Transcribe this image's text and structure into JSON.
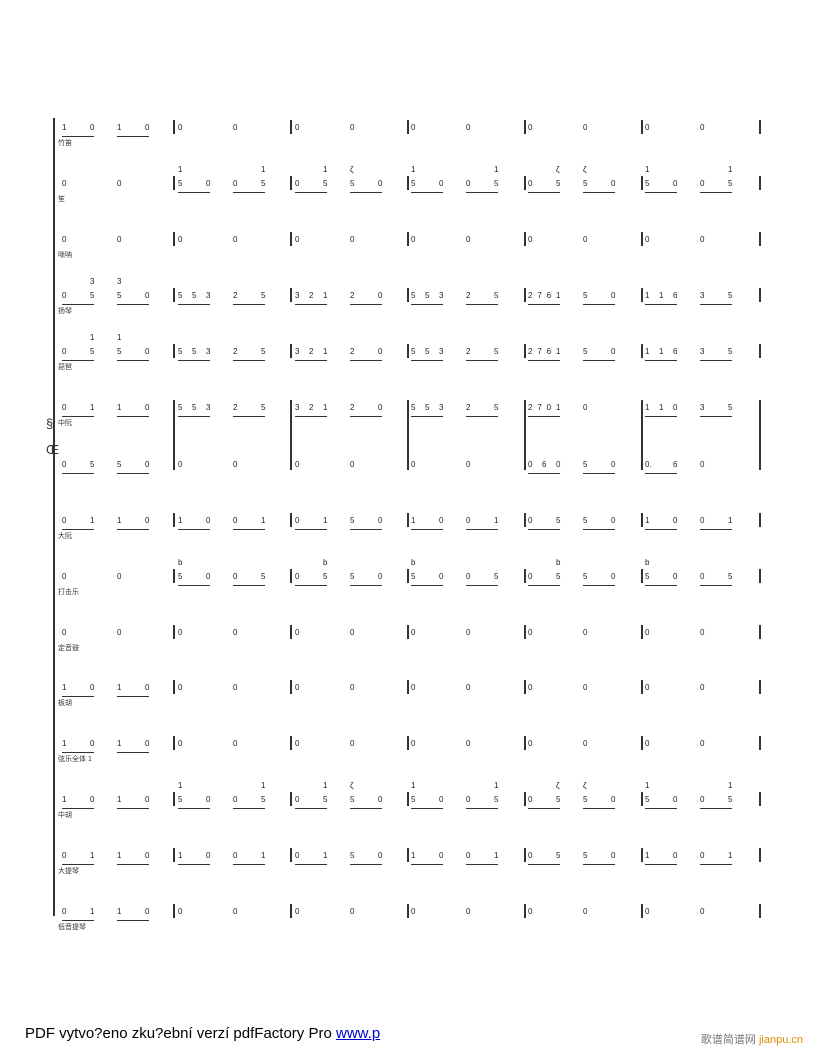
{
  "symbols": {
    "segno": "§",
    "coda": "Œ"
  },
  "rows": [
    {
      "label": "竹笛",
      "m": [
        [
          "_1 0",
          "_1 0"
        ],
        [
          "0",
          "0"
        ],
        [
          "0",
          "0"
        ],
        [
          "0",
          "0"
        ],
        [
          "0",
          "0"
        ],
        [
          "0",
          "0"
        ]
      ]
    },
    {
      "label": "笙",
      "m": [
        [
          "0",
          "0"
        ],
        [
          "_5^1 0",
          "_0 5^1"
        ],
        [
          "_0 5^1",
          "_5^ζ 0"
        ],
        [
          "_5^1 0",
          "_0 5^1"
        ],
        [
          "_0 5^ζ",
          "_5^ζ 0"
        ],
        [
          "_5^1 0",
          "_0 5^1"
        ]
      ]
    },
    {
      "label": "唢呐",
      "m": [
        [
          "0",
          "0"
        ],
        [
          "0",
          "0"
        ],
        [
          "0",
          "0"
        ],
        [
          "0",
          "0"
        ],
        [
          "0",
          "0"
        ],
        [
          "0",
          "0"
        ]
      ]
    },
    {
      "label": "扬琴",
      "m": [
        [
          "_0 5^3",
          "_5^3 0"
        ],
        [
          "_5 5 3",
          "_2 5"
        ],
        [
          "_3 2 1",
          "_2 0"
        ],
        [
          "_5 5 3",
          "_2 5"
        ],
        [
          "_2 7 6 1",
          "_5 0"
        ],
        [
          "_1 1 6",
          "_3 5"
        ]
      ]
    },
    {
      "label": "琵琶",
      "m": [
        [
          "_0 5^1",
          "_5^1 0"
        ],
        [
          "_5 5 3",
          "_2 5"
        ],
        [
          "_3 2 1",
          "_2 0"
        ],
        [
          "_5 5 3",
          "_2 5"
        ],
        [
          "_2 7 6 1",
          "_5 0"
        ],
        [
          "_1 1 6",
          "_3 5"
        ]
      ]
    },
    {
      "label": "中阮",
      "m": [
        [
          "_0 1",
          "_1 0"
        ],
        [
          "_5 5 3",
          "_2 5"
        ],
        [
          "_3 2 1",
          "_2 0"
        ],
        [
          "_5 5 3",
          "_2 5"
        ],
        [
          "_2 7 0 1",
          "0"
        ],
        [
          "_1 1 0",
          "_3 5"
        ]
      ]
    },
    {
      "label": "",
      "m": [
        [
          "_0 5",
          "_5 0"
        ],
        [
          "0",
          "0"
        ],
        [
          "0",
          "0"
        ],
        [
          "0",
          "0"
        ],
        [
          "_0 6 0",
          "_5 0"
        ],
        [
          "_0. 6",
          "0"
        ]
      ]
    },
    {
      "label": "大阮",
      "m": [
        [
          "_0 1",
          "_1 0"
        ],
        [
          "_1 0",
          "_0 1"
        ],
        [
          "_0 1",
          "_5 0"
        ],
        [
          "_1 0",
          "_0 1"
        ],
        [
          "_0 5",
          "_5 0"
        ],
        [
          "_1 0",
          "_0 1"
        ]
      ]
    },
    {
      "label": "打击乐",
      "m": [
        [
          "0",
          "0"
        ],
        [
          "_5^b 0",
          "_0 5"
        ],
        [
          "_0 5^b",
          "_5 0"
        ],
        [
          "_5^b 0",
          "_0 5"
        ],
        [
          "_0 5^b",
          "_5 0"
        ],
        [
          "_5^b 0",
          "_0 5"
        ]
      ]
    },
    {
      "label": "定音鼓",
      "m": [
        [
          "0",
          "0"
        ],
        [
          "0",
          "0"
        ],
        [
          "0",
          "0"
        ],
        [
          "0",
          "0"
        ],
        [
          "0",
          "0"
        ],
        [
          "0",
          "0"
        ]
      ]
    },
    {
      "label": "板胡",
      "m": [
        [
          "_1 0",
          "_1 0"
        ],
        [
          "0",
          "0"
        ],
        [
          "0",
          "0"
        ],
        [
          "0",
          "0"
        ],
        [
          "0",
          "0"
        ],
        [
          "0",
          "0"
        ]
      ]
    },
    {
      "label": "弦乐全体 1",
      "m": [
        [
          "_1 0",
          "_1 0"
        ],
        [
          "0",
          "0"
        ],
        [
          "0",
          "0"
        ],
        [
          "0",
          "0"
        ],
        [
          "0",
          "0"
        ],
        [
          "0",
          "0"
        ]
      ]
    },
    {
      "label": "中胡",
      "m": [
        [
          "_1 0",
          "_1 0"
        ],
        [
          "_5^1 0",
          "_0 5^1"
        ],
        [
          "_0 5^1",
          "_5^ζ 0"
        ],
        [
          "_5^1 0",
          "_0 5^1"
        ],
        [
          "_0 5^ζ",
          "_5^ζ 0"
        ],
        [
          "_5^1 0",
          "_0 5^1"
        ]
      ]
    },
    {
      "label": "大提琴",
      "m": [
        [
          "_0 1",
          "_1 0"
        ],
        [
          "_1 0",
          "_0 1"
        ],
        [
          "_0 1",
          "_5 0"
        ],
        [
          "_1 0",
          "_0 1"
        ],
        [
          "_0 5",
          "_5 0"
        ],
        [
          "_1 0",
          "_0 1"
        ]
      ]
    },
    {
      "label": "低音提琴",
      "m": [
        [
          "_0 1",
          "_1 0"
        ],
        [
          "0",
          "0"
        ],
        [
          "0",
          "0"
        ],
        [
          "0",
          "0"
        ],
        [
          "0",
          "0"
        ],
        [
          "0",
          "0"
        ]
      ]
    }
  ],
  "footer": {
    "text": "PDF vytvo?eno zku?ební verzí pdfFactory Pro ",
    "link": "www.p"
  },
  "watermark": {
    "cn": "歌谱简谱网",
    "site": "jianpu.cn"
  }
}
